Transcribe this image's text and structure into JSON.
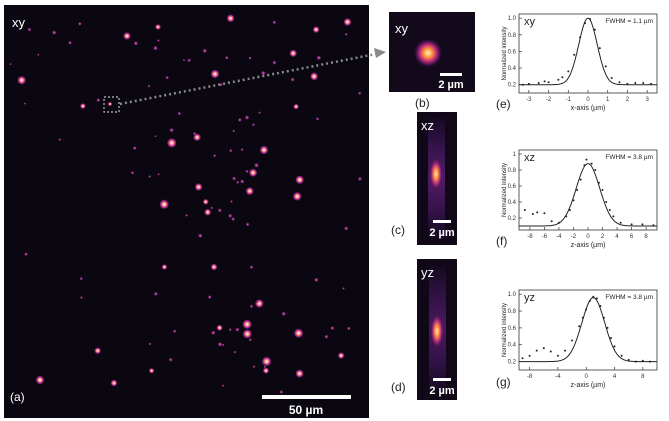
{
  "panel_a": {
    "plane": "xy",
    "label": "(a)",
    "scalebar": "50 µm",
    "colors": {
      "background": "#0b0710",
      "spot_core": "#ffd7a0",
      "spot_mid": "#e23b8e",
      "spot_edge": "#5a1a6a",
      "box": "#bbbbbb",
      "arrow": "#888888"
    }
  },
  "panel_b": {
    "plane": "xy",
    "label": "(b)",
    "scalebar": "2 µm"
  },
  "panel_c": {
    "plane": "xz",
    "label": "(c)",
    "scalebar": "2 µm"
  },
  "panel_d": {
    "plane": "yz",
    "label": "(d)",
    "scalebar": "2 µm"
  },
  "chart_data": [
    {
      "type": "line",
      "label": "(e)",
      "title": "xy",
      "annotation": "FWHM = 1.1 µm",
      "xlabel": "x-axis (µm)",
      "ylabel": "Normalized intensity",
      "xlim": [
        -3.5,
        3.5
      ],
      "ylim": [
        0.1,
        1.05
      ],
      "xticks": [
        -3,
        -2,
        -1,
        0,
        1,
        2,
        3
      ],
      "yticks": [
        0.2,
        0.4,
        0.6,
        0.8,
        1.0
      ],
      "ytick_labels": [
        "0.2",
        "0.4",
        "0.6",
        "0.8",
        "1.0"
      ],
      "fit": {
        "amplitude": 0.8,
        "center": 0.0,
        "fwhm": 1.1,
        "baseline": 0.2
      },
      "points": [
        {
          "x": -3.3,
          "y": 0.2
        },
        {
          "x": -3.0,
          "y": 0.21
        },
        {
          "x": -2.5,
          "y": 0.22
        },
        {
          "x": -2.2,
          "y": 0.24
        },
        {
          "x": -2.0,
          "y": 0.23
        },
        {
          "x": -1.5,
          "y": 0.26
        },
        {
          "x": -1.3,
          "y": 0.29
        },
        {
          "x": -1.0,
          "y": 0.36
        },
        {
          "x": -0.7,
          "y": 0.56
        },
        {
          "x": -0.4,
          "y": 0.77
        },
        {
          "x": -0.15,
          "y": 0.94
        },
        {
          "x": 0.1,
          "y": 0.99
        },
        {
          "x": 0.35,
          "y": 0.86
        },
        {
          "x": 0.6,
          "y": 0.64
        },
        {
          "x": 0.9,
          "y": 0.42
        },
        {
          "x": 1.2,
          "y": 0.28
        },
        {
          "x": 1.6,
          "y": 0.23
        },
        {
          "x": 2.0,
          "y": 0.21
        },
        {
          "x": 2.4,
          "y": 0.22
        },
        {
          "x": 2.8,
          "y": 0.22
        },
        {
          "x": 3.2,
          "y": 0.21
        }
      ]
    },
    {
      "type": "line",
      "label": "(f)",
      "title": "xz",
      "annotation": "FWHM = 3.8 µm",
      "xlabel": "z-axis (µm)",
      "ylabel": "Normalized intensity",
      "xlim": [
        -9.5,
        9.5
      ],
      "ylim": [
        0.05,
        1.05
      ],
      "xticks": [
        -8,
        -6,
        -4,
        -2,
        0,
        2,
        4,
        6,
        8
      ],
      "yticks": [
        0.2,
        0.4,
        0.6,
        0.8,
        1.0
      ],
      "ytick_labels": [
        "0.2",
        "0.4",
        "0.6",
        "0.8",
        "1"
      ],
      "fit": {
        "amplitude": 0.78,
        "center": 0.0,
        "fwhm": 3.8,
        "baseline": 0.1
      },
      "points": [
        {
          "x": -8.7,
          "y": 0.3
        },
        {
          "x": -7.6,
          "y": 0.25
        },
        {
          "x": -7.0,
          "y": 0.27
        },
        {
          "x": -6.0,
          "y": 0.26
        },
        {
          "x": -5.0,
          "y": 0.16
        },
        {
          "x": -4.0,
          "y": 0.14
        },
        {
          "x": -3.0,
          "y": 0.22
        },
        {
          "x": -2.5,
          "y": 0.3
        },
        {
          "x": -2.0,
          "y": 0.42
        },
        {
          "x": -1.5,
          "y": 0.55
        },
        {
          "x": -1.0,
          "y": 0.68
        },
        {
          "x": -0.5,
          "y": 0.86
        },
        {
          "x": -0.2,
          "y": 0.93
        },
        {
          "x": 0.5,
          "y": 0.88
        },
        {
          "x": 1.0,
          "y": 0.8
        },
        {
          "x": 1.5,
          "y": 0.64
        },
        {
          "x": 2.0,
          "y": 0.55
        },
        {
          "x": 2.5,
          "y": 0.4
        },
        {
          "x": 3.0,
          "y": 0.3
        },
        {
          "x": 3.5,
          "y": 0.22
        },
        {
          "x": 4.5,
          "y": 0.14
        },
        {
          "x": 6.0,
          "y": 0.12
        },
        {
          "x": 7.5,
          "y": 0.12
        },
        {
          "x": 9.0,
          "y": 0.11
        }
      ]
    },
    {
      "type": "line",
      "label": "(g)",
      "title": "yz",
      "annotation": "FWHM = 3.8 µm",
      "xlabel": "z-axis (µm)",
      "ylabel": "Normalized intensity",
      "xlim": [
        -9.5,
        10
      ],
      "ylim": [
        0.1,
        1.05
      ],
      "xticks": [
        -8,
        -4,
        0,
        4,
        8
      ],
      "yticks": [
        0.2,
        0.4,
        0.6,
        0.8,
        1.0
      ],
      "ytick_labels": [
        "0.2",
        "0.4",
        "0.6",
        "0.8",
        "1.0"
      ],
      "fit": {
        "amplitude": 0.76,
        "center": 1.0,
        "fwhm": 3.8,
        "baseline": 0.2
      },
      "points": [
        {
          "x": -9.0,
          "y": 0.24
        },
        {
          "x": -8.0,
          "y": 0.27
        },
        {
          "x": -7.0,
          "y": 0.33
        },
        {
          "x": -6.0,
          "y": 0.36
        },
        {
          "x": -5.0,
          "y": 0.32
        },
        {
          "x": -4.0,
          "y": 0.27
        },
        {
          "x": -3.0,
          "y": 0.33
        },
        {
          "x": -2.0,
          "y": 0.45
        },
        {
          "x": -1.0,
          "y": 0.62
        },
        {
          "x": -0.5,
          "y": 0.72
        },
        {
          "x": 0.0,
          "y": 0.82
        },
        {
          "x": 0.5,
          "y": 0.92
        },
        {
          "x": 1.0,
          "y": 0.97
        },
        {
          "x": 1.5,
          "y": 0.95
        },
        {
          "x": 2.0,
          "y": 0.86
        },
        {
          "x": 2.5,
          "y": 0.72
        },
        {
          "x": 3.0,
          "y": 0.6
        },
        {
          "x": 3.5,
          "y": 0.48
        },
        {
          "x": 4.0,
          "y": 0.38
        },
        {
          "x": 5.0,
          "y": 0.27
        },
        {
          "x": 6.0,
          "y": 0.22
        },
        {
          "x": 7.0,
          "y": 0.2
        },
        {
          "x": 8.0,
          "y": 0.21
        },
        {
          "x": 9.0,
          "y": 0.2
        }
      ]
    }
  ]
}
